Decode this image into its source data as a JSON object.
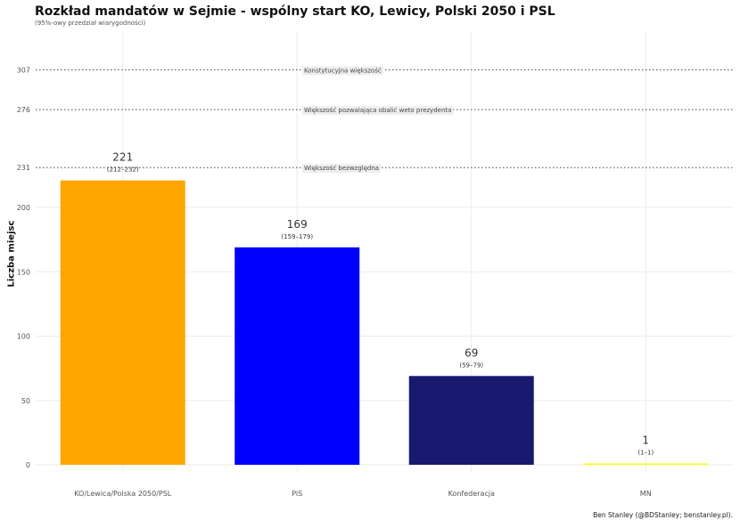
{
  "chart_data": {
    "type": "bar",
    "title": "Rozkład mandatów w Sejmie - wspólny start KO, Lewicy, Polski 2050 i PSL",
    "subtitle": "(95%-owy przedział wiarygodności)",
    "xlabel": "",
    "ylabel": "Liczba miejsc",
    "caption": "Ben Stanley (@BDStanley; benstanley.pl).",
    "categories": [
      "KO/Lewica/Polska 2050/PSL",
      "PiS",
      "Konfederacja",
      "MN"
    ],
    "values": [
      221,
      169,
      69,
      1
    ],
    "intervals": [
      "(212–232)",
      "(159–179)",
      "(59–79)",
      "(1–1)"
    ],
    "colors": [
      "#FFA500",
      "#0000FF",
      "#191970",
      "#FFFF00"
    ],
    "ylim": [
      0,
      320
    ],
    "yticks": [
      0,
      50,
      100,
      150,
      200,
      231,
      276,
      307
    ],
    "grid": true,
    "reference_lines": [
      {
        "value": 307,
        "label": "Konstytucyjna większość"
      },
      {
        "value": 276,
        "label": "Większość pozwalająca obalić weto prezydenta"
      },
      {
        "value": 231,
        "label": "Większość bezwzględna"
      }
    ]
  }
}
